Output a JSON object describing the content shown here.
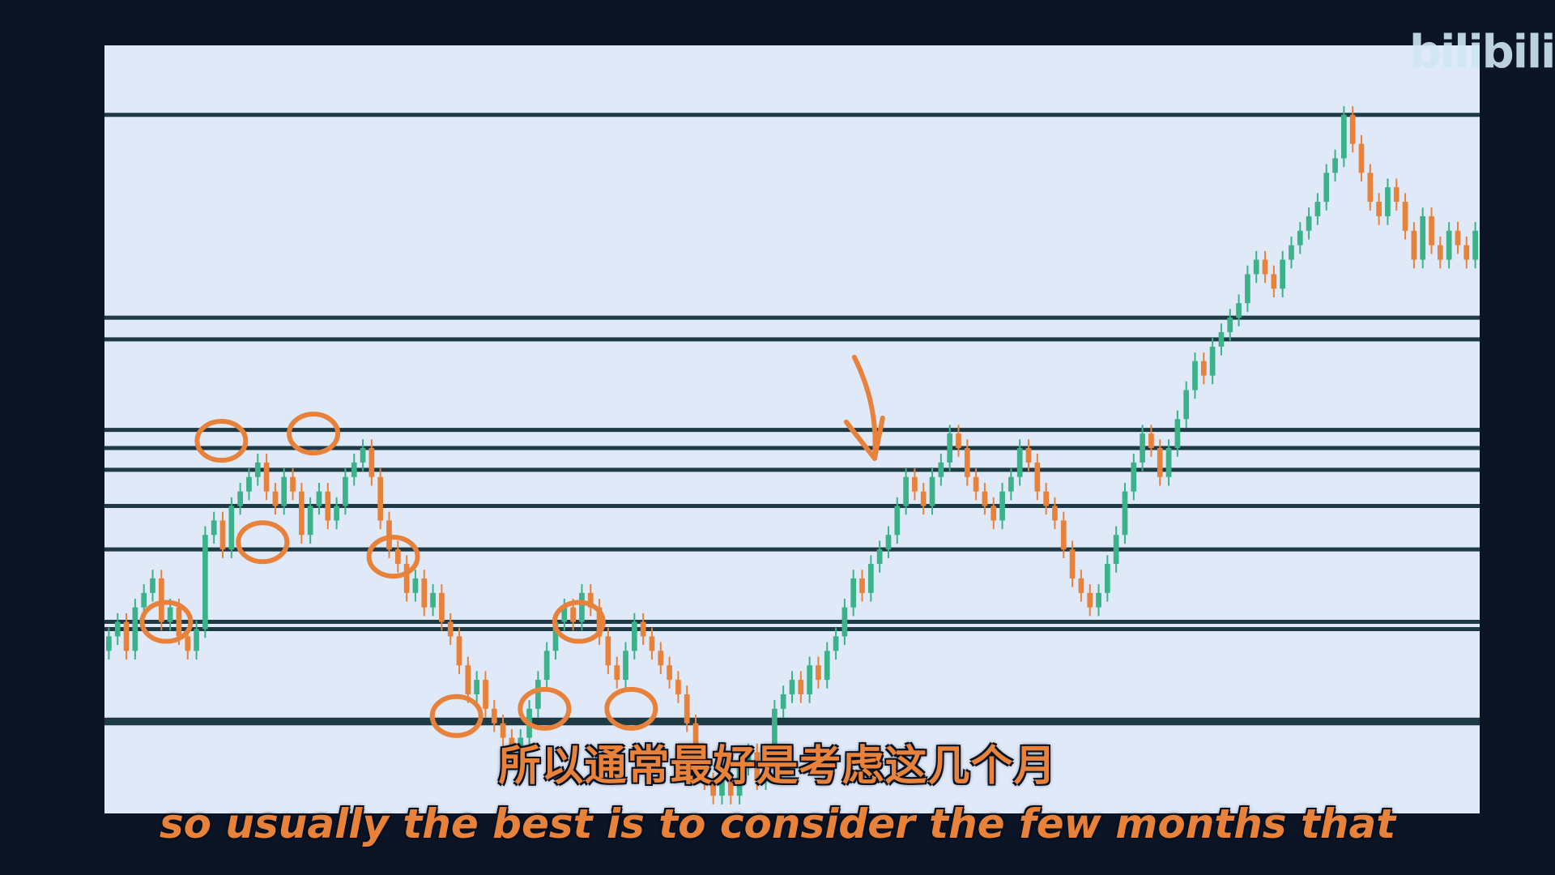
{
  "watermark": "bilibili",
  "subtitle": {
    "cn": "所以通常最好是考虑这几个月",
    "en": "so usually the best is to consider the few months that"
  },
  "colors": {
    "background": "#0b1526",
    "panel": "#dfe9f8",
    "up": "#3bb28a",
    "down": "#e8823b",
    "level_line": "#1d3a45",
    "annotation": "#e8823b"
  },
  "chart_data": {
    "type": "candlestick",
    "title": "",
    "xlabel": "",
    "ylabel": "",
    "grid": false,
    "ylim": [
      0,
      100
    ],
    "levels": [
      96,
      68,
      65,
      52.5,
      50,
      47,
      42,
      36,
      26,
      25,
      12.5,
      12
    ],
    "close": [
      24,
      26,
      22,
      28,
      30,
      32,
      26,
      28,
      24,
      22,
      25,
      38,
      40,
      36,
      42,
      44,
      46,
      48,
      44,
      42,
      46,
      44,
      38,
      42,
      44,
      40,
      42,
      46,
      48,
      50,
      46,
      40,
      36,
      34,
      30,
      32,
      28,
      30,
      26,
      24,
      20,
      16,
      18,
      14,
      12,
      10,
      8,
      10,
      14,
      18,
      22,
      26,
      28,
      26,
      30,
      28,
      24,
      20,
      18,
      22,
      26,
      24,
      22,
      20,
      18,
      16,
      12,
      8,
      4,
      2,
      4,
      2,
      6,
      8,
      4,
      6,
      14,
      16,
      18,
      16,
      20,
      18,
      22,
      24,
      28,
      32,
      30,
      34,
      36,
      38,
      42,
      46,
      44,
      42,
      46,
      48,
      52,
      50,
      46,
      44,
      42,
      40,
      44,
      46,
      50,
      48,
      44,
      42,
      40,
      36,
      32,
      30,
      28,
      30,
      34,
      38,
      44,
      48,
      52,
      50,
      46,
      50,
      54,
      58,
      62,
      60,
      64,
      66,
      68,
      70,
      74,
      76,
      74,
      72,
      76,
      78,
      80,
      82,
      84,
      88,
      90,
      96,
      92,
      88,
      84,
      82,
      86,
      84,
      80,
      76,
      82,
      78,
      76,
      80,
      78,
      76,
      80
    ],
    "annotations": [
      {
        "shape": "circle",
        "at": 0.045,
        "y": 26
      },
      {
        "shape": "circle",
        "at": 0.085,
        "y": 51
      },
      {
        "shape": "circle",
        "at": 0.115,
        "y": 37
      },
      {
        "shape": "circle",
        "at": 0.152,
        "y": 52
      },
      {
        "shape": "circle",
        "at": 0.21,
        "y": 35
      },
      {
        "shape": "circle",
        "at": 0.256,
        "y": 13
      },
      {
        "shape": "circle",
        "at": 0.32,
        "y": 14
      },
      {
        "shape": "circle",
        "at": 0.345,
        "y": 26
      },
      {
        "shape": "circle",
        "at": 0.383,
        "y": 14
      },
      {
        "shape": "arrow",
        "at": 0.56,
        "y": 48
      }
    ]
  }
}
